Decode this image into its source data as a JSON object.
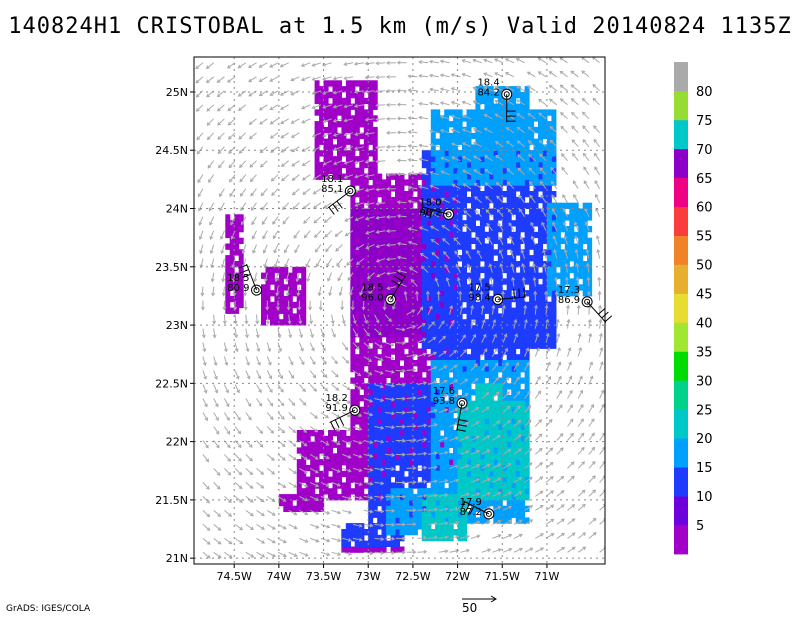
{
  "title": "140824H1 CRISTOBAL at 1.5 km (m/s) Valid 20140824 1135Z",
  "credit": "GrADS: IGES/COLA",
  "vector_scale_label": "50",
  "map": {
    "lon_range": [
      -74.95,
      -70.35
    ],
    "lat_range": [
      20.95,
      25.3
    ],
    "x_ticks": [
      {
        "value": -74.5,
        "label": "74.5W"
      },
      {
        "value": -74.0,
        "label": "74W"
      },
      {
        "value": -73.5,
        "label": "73.5W"
      },
      {
        "value": -73.0,
        "label": "73W"
      },
      {
        "value": -72.5,
        "label": "72.5W"
      },
      {
        "value": -72.0,
        "label": "72W"
      },
      {
        "value": -71.5,
        "label": "71.5W"
      },
      {
        "value": -71.0,
        "label": "71W"
      }
    ],
    "y_ticks": [
      {
        "value": 21.0,
        "label": "21N"
      },
      {
        "value": 21.5,
        "label": "21.5N"
      },
      {
        "value": 22.0,
        "label": "22N"
      },
      {
        "value": 22.5,
        "label": "22.5N"
      },
      {
        "value": 23.0,
        "label": "23N"
      },
      {
        "value": 23.5,
        "label": "23.5N"
      },
      {
        "value": 24.0,
        "label": "24N"
      },
      {
        "value": 24.5,
        "label": "24.5N"
      },
      {
        "value": 25.0,
        "label": "25N"
      }
    ],
    "grid": true
  },
  "colorbar": {
    "levels": [
      "5",
      "10",
      "15",
      "20",
      "25",
      "30",
      "35",
      "40",
      "45",
      "50",
      "55",
      "60",
      "65",
      "70",
      "75",
      "80"
    ],
    "colors": [
      "#a000c8",
      "#6e00dc",
      "#1e3cff",
      "#00a0ff",
      "#00c8c8",
      "#00d28c",
      "#00dc00",
      "#a0e632",
      "#e6dc32",
      "#e6af2d",
      "#f08228",
      "#fa3c3c",
      "#f00082",
      "#8c00c8",
      "#00c8c8",
      "#96dc32",
      "#aaaaaa"
    ]
  },
  "stations": [
    {
      "lon": -71.45,
      "lat": 24.98,
      "label1": "18.4",
      "label2": "84.2"
    },
    {
      "lon": -73.2,
      "lat": 24.15,
      "label1": "18.1",
      "label2": "85.1"
    },
    {
      "lon": -72.1,
      "lat": 23.95,
      "label1": "18.0",
      "label2": "98.2"
    },
    {
      "lon": -74.25,
      "lat": 23.3,
      "label1": "18.5",
      "label2": "80.9"
    },
    {
      "lon": -72.75,
      "lat": 23.22,
      "label1": "18.5",
      "label2": "96.0"
    },
    {
      "lon": -71.55,
      "lat": 23.22,
      "label1": "17.5",
      "label2": "98.4"
    },
    {
      "lon": -70.55,
      "lat": 23.2,
      "label1": "17.3",
      "label2": "86.9"
    },
    {
      "lon": -71.95,
      "lat": 22.33,
      "label1": "17.6",
      "label2": "93.8"
    },
    {
      "lon": -73.15,
      "lat": 22.27,
      "label1": "18.2",
      "label2": "91.9"
    },
    {
      "lon": -71.65,
      "lat": 21.38,
      "label1": "17.9",
      "label2": "87.2"
    }
  ],
  "center": {
    "lon": -72.65,
    "lat": 23.2
  }
}
